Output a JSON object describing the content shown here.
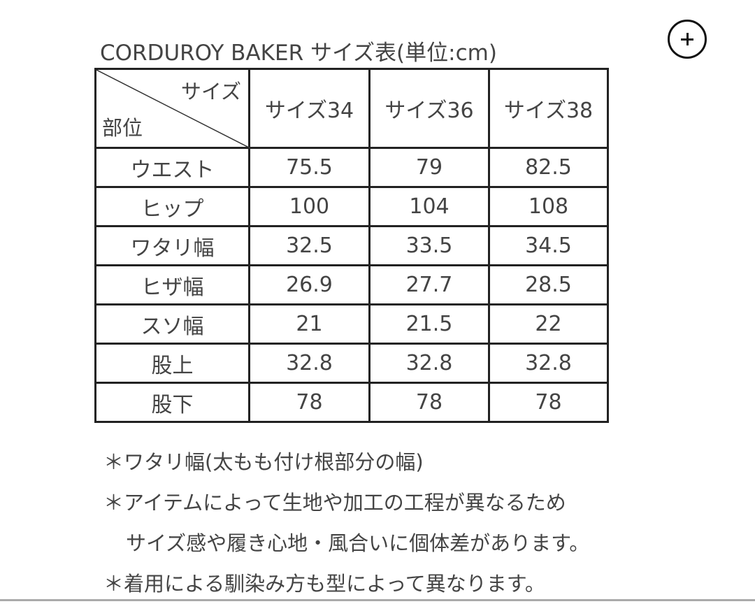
{
  "title": "CORDUROY BAKER サイズ表(単位:cm)",
  "zoom_icon": "plus-circle-icon",
  "table": {
    "corner_top": "サイズ",
    "corner_bottom": "部位",
    "columns": [
      "サイズ34",
      "サイズ36",
      "サイズ38"
    ],
    "rows": [
      {
        "label": "ウエスト",
        "values": [
          "75.5",
          "79",
          "82.5"
        ]
      },
      {
        "label": "ヒップ",
        "values": [
          "100",
          "104",
          "108"
        ]
      },
      {
        "label": "ワタリ幅",
        "values": [
          "32.5",
          "33.5",
          "34.5"
        ]
      },
      {
        "label": "ヒザ幅",
        "values": [
          "26.9",
          "27.7",
          "28.5"
        ]
      },
      {
        "label": "スソ幅",
        "values": [
          "21",
          "21.5",
          "22"
        ]
      },
      {
        "label": "股上",
        "values": [
          "32.8",
          "32.8",
          "32.8"
        ]
      },
      {
        "label": "股下",
        "values": [
          "78",
          "78",
          "78"
        ]
      }
    ]
  },
  "notes": [
    "＊ワタリ幅(太もも付け根部分の幅)",
    "＊アイテムによって生地や加工の工程が異なるため",
    "サイズ感や履き心地・風合いに個体差があります。",
    "＊着用による馴染み方も型によって異なります。"
  ]
}
